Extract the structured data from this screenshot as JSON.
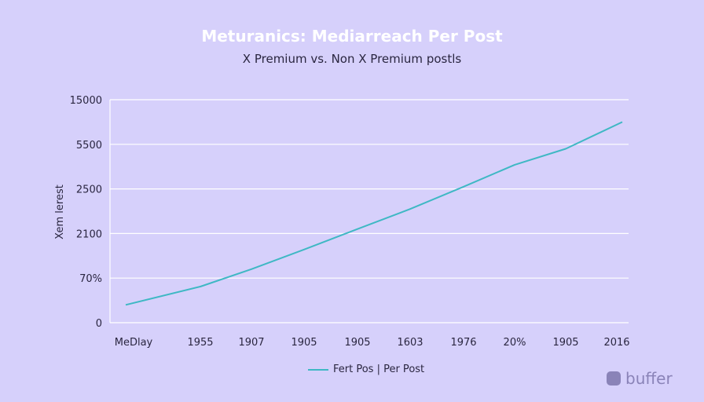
{
  "chart_data": {
    "type": "line",
    "title": "Meturanics: Mediarreach Per Post",
    "subtitle": "X Premium vs. Non X Premium postls",
    "ylabel": "Xem lerest",
    "xlabel": "",
    "categories": [
      "MeDlay",
      "1955",
      "1907",
      "1905",
      "1905",
      "1603",
      "1976",
      "20%",
      "1905",
      "2016"
    ],
    "y_ticks": [
      "0",
      "70%",
      "2100",
      "2500",
      "5500",
      "15000"
    ],
    "grid": true,
    "legend_position": "bottom",
    "series": [
      {
        "name": "Fert Pos | Per Post",
        "color": "#3fb8c4",
        "values": [
          0.4,
          0.81,
          1.2,
          1.64,
          2.1,
          2.55,
          3.05,
          3.54,
          3.9,
          4.5
        ]
      }
    ]
  },
  "branding": {
    "logo_text": "buffer"
  }
}
